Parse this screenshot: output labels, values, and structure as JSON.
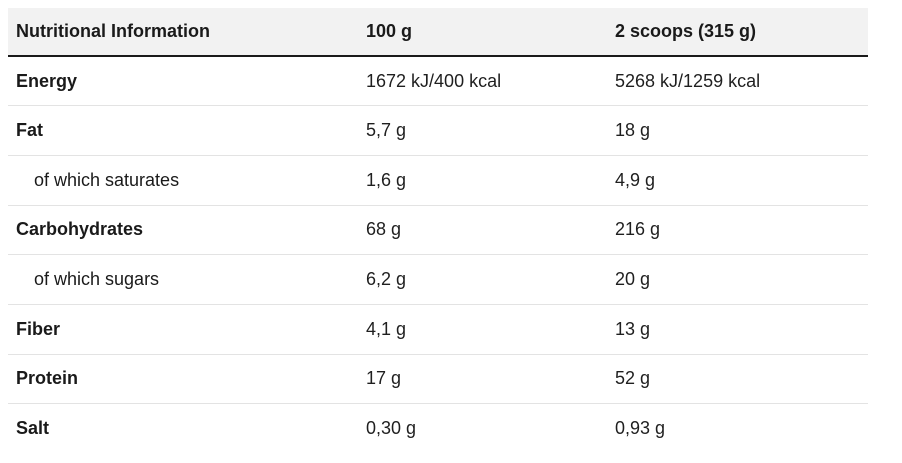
{
  "header": {
    "col1": "Nutritional Information",
    "col2": "100 g",
    "col3": "2 scoops (315 g)"
  },
  "rows": [
    {
      "label": "Energy",
      "v100": "1672 kJ/400 kcal",
      "vserv": "5268 kJ/1259 kcal",
      "sub": false
    },
    {
      "label": "Fat",
      "v100": "5,7 g",
      "vserv": "18 g",
      "sub": false
    },
    {
      "label": "of which saturates",
      "v100": "1,6 g",
      "vserv": "4,9 g",
      "sub": true
    },
    {
      "label": "Carbohydrates",
      "v100": "68 g",
      "vserv": "216 g",
      "sub": false
    },
    {
      "label": "of which sugars",
      "v100": "6,2 g",
      "vserv": "20 g",
      "sub": true
    },
    {
      "label": "Fiber",
      "v100": "4,1 g",
      "vserv": "13 g",
      "sub": false
    },
    {
      "label": "Protein",
      "v100": "17 g",
      "vserv": "52 g",
      "sub": false
    },
    {
      "label": "Salt",
      "v100": "0,30 g",
      "vserv": "0,93 g",
      "sub": false
    }
  ]
}
